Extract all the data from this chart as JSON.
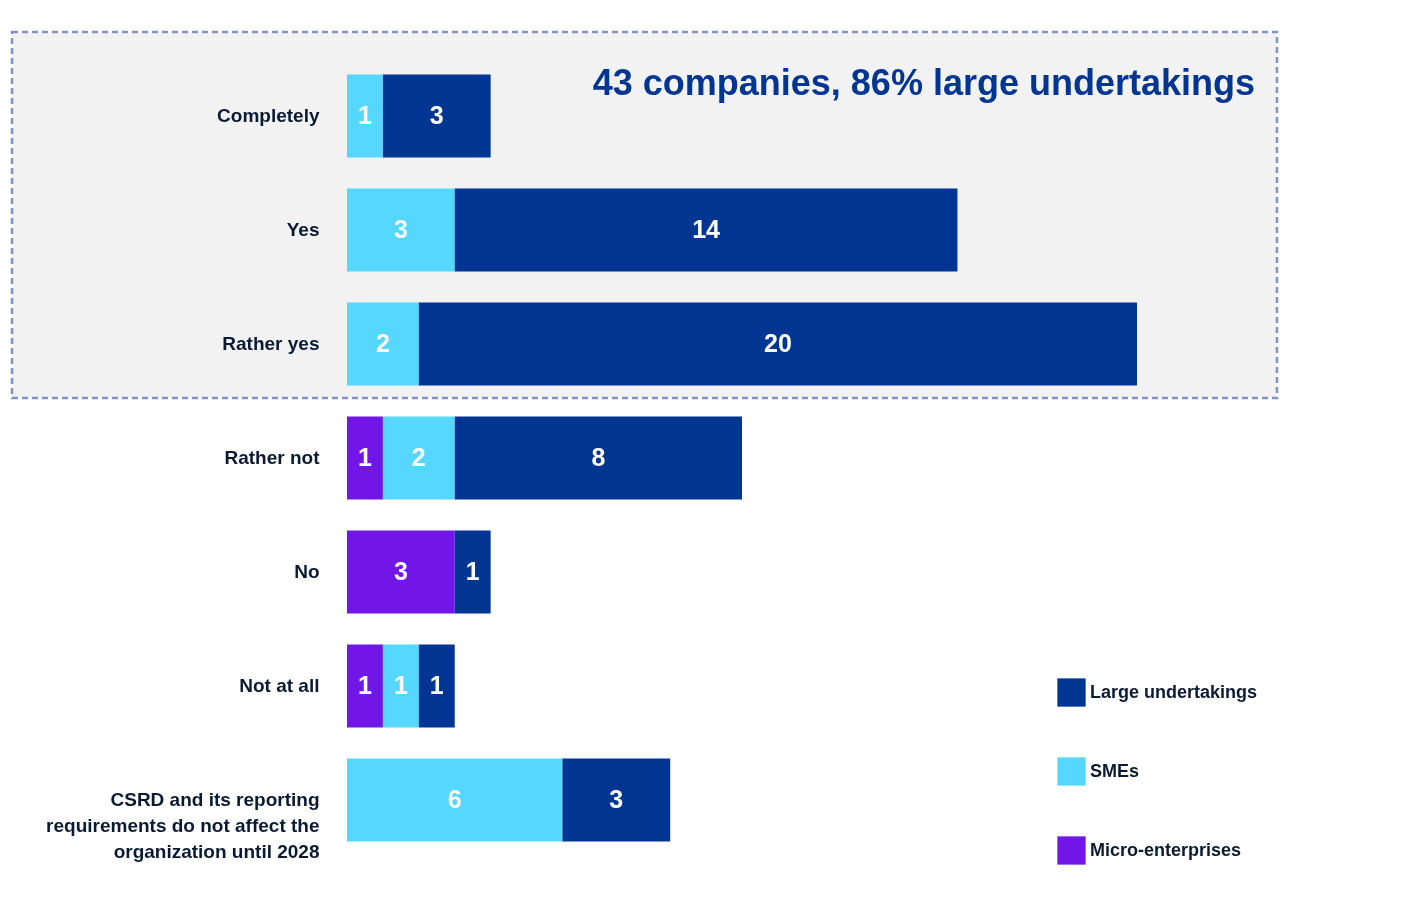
{
  "chart_data": {
    "type": "bar",
    "orientation": "horizontal",
    "stacked": true,
    "categories": [
      "Completely",
      "Yes",
      "Rather yes",
      "Rather not",
      "No",
      "Not at all",
      "CSRD and its reporting requirements do not affect the organization until 2028"
    ],
    "series": [
      {
        "name": "Micro-enterprises",
        "color": "#7216e8",
        "values": [
          null,
          null,
          null,
          1,
          3,
          1,
          null
        ]
      },
      {
        "name": "SMEs",
        "color": "#55d7ff",
        "values": [
          1,
          3,
          2,
          2,
          null,
          1,
          6
        ]
      },
      {
        "name": "Large undertakings",
        "color": "#003591",
        "values": [
          3,
          14,
          20,
          8,
          1,
          1,
          3
        ]
      }
    ],
    "data_labels": true,
    "tick_labels": "y",
    "grid": false,
    "legend": "bottom right",
    "bands": [
      {
        "axis": "y",
        "from": "Completely",
        "to": "Rather yes",
        "label": "43 companies, 86% large undertakings",
        "color": "#f2f2f2"
      }
    ]
  }
}
